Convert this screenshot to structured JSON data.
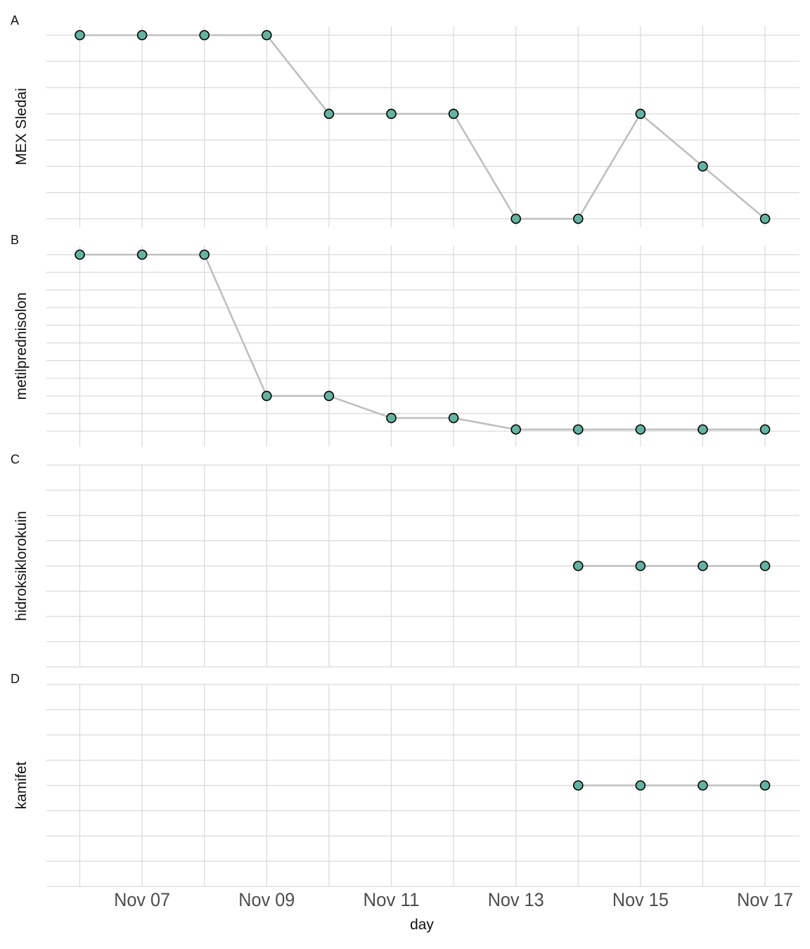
{
  "chart_data": {
    "type": "line",
    "x_axis": {
      "label": "day",
      "tick_labels": [
        "Nov 07",
        "Nov 09",
        "Nov 11",
        "Nov 13",
        "Nov 15",
        "Nov 17"
      ],
      "dates": [
        "Nov 06",
        "Nov 07",
        "Nov 08",
        "Nov 09",
        "Nov 10",
        "Nov 11",
        "Nov 12",
        "Nov 13",
        "Nov 14",
        "Nov 15",
        "Nov 16",
        "Nov 17"
      ],
      "grid": true
    },
    "style": {
      "line_color": "#bfbfbf",
      "point_fill": "#66b2a0",
      "point_stroke": "#000000",
      "grid_color": "#d9d9d9"
    },
    "panels": [
      {
        "letter": "A",
        "ylabel": "MEX Sledai",
        "ylim": [
          0,
          7
        ],
        "ygrid": [
          0,
          1,
          2,
          3,
          4,
          5,
          6,
          7
        ],
        "points": [
          {
            "x": "Nov 06",
            "y": 7
          },
          {
            "x": "Nov 07",
            "y": 7
          },
          {
            "x": "Nov 08",
            "y": 7
          },
          {
            "x": "Nov 09",
            "y": 7
          },
          {
            "x": "Nov 10",
            "y": 4
          },
          {
            "x": "Nov 11",
            "y": 4
          },
          {
            "x": "Nov 12",
            "y": 4
          },
          {
            "x": "Nov 13",
            "y": 0
          },
          {
            "x": "Nov 14",
            "y": 0
          },
          {
            "x": "Nov 15",
            "y": 4
          },
          {
            "x": "Nov 16",
            "y": 2
          },
          {
            "x": "Nov 17",
            "y": 0
          }
        ]
      },
      {
        "letter": "B",
        "ylabel": "metilprednisolon",
        "ylim": [
          0,
          10
        ],
        "ygrid": [
          0,
          1,
          2,
          3,
          4,
          5,
          6,
          7,
          8,
          9,
          10
        ],
        "points": [
          {
            "x": "Nov 06",
            "y": 10
          },
          {
            "x": "Nov 07",
            "y": 10
          },
          {
            "x": "Nov 08",
            "y": 10
          },
          {
            "x": "Nov 09",
            "y": 2
          },
          {
            "x": "Nov 10",
            "y": 2
          },
          {
            "x": "Nov 11",
            "y": 0.75
          },
          {
            "x": "Nov 12",
            "y": 0.75
          },
          {
            "x": "Nov 13",
            "y": 0.1
          },
          {
            "x": "Nov 14",
            "y": 0.1
          },
          {
            "x": "Nov 15",
            "y": 0.1
          },
          {
            "x": "Nov 16",
            "y": 0.1
          },
          {
            "x": "Nov 17",
            "y": 0.1
          }
        ]
      },
      {
        "letter": "C",
        "ylabel": "hidroksiklorokuin",
        "ylim": [
          0,
          8
        ],
        "ygrid": [
          0,
          1,
          2,
          3,
          4,
          5,
          6,
          7,
          8
        ],
        "points": [
          {
            "x": "Nov 14",
            "y": 4
          },
          {
            "x": "Nov 15",
            "y": 4
          },
          {
            "x": "Nov 16",
            "y": 4
          },
          {
            "x": "Nov 17",
            "y": 4
          }
        ]
      },
      {
        "letter": "D",
        "ylabel": "kamifet",
        "ylim": [
          0,
          8
        ],
        "ygrid": [
          0,
          1,
          2,
          3,
          4,
          5,
          6,
          7,
          8
        ],
        "points": [
          {
            "x": "Nov 14",
            "y": 4
          },
          {
            "x": "Nov 15",
            "y": 4
          },
          {
            "x": "Nov 16",
            "y": 4
          },
          {
            "x": "Nov 17",
            "y": 4
          }
        ]
      }
    ]
  }
}
